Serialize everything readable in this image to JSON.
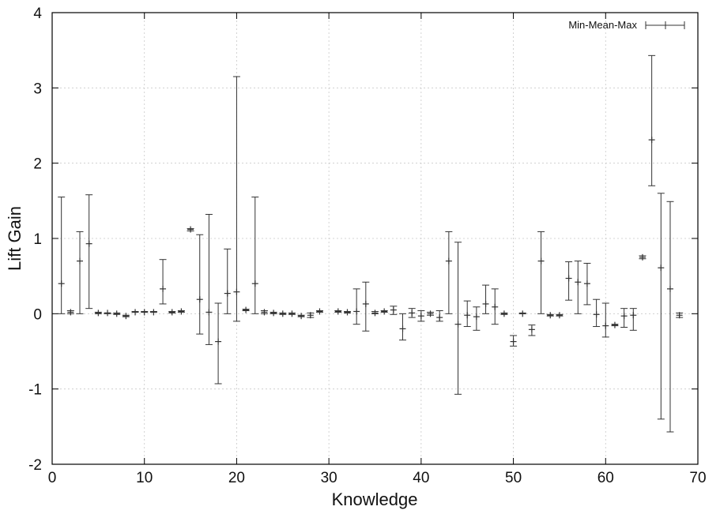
{
  "chart_data": {
    "type": "scatter",
    "style": "errorbars",
    "title": "",
    "xlabel": "Knowledge",
    "ylabel": "Lift Gain",
    "xlim": [
      0,
      70
    ],
    "ylim": [
      -2,
      4
    ],
    "xticks": [
      "0",
      "10",
      "20",
      "30",
      "40",
      "50",
      "60",
      "70"
    ],
    "yticks": [
      "-2",
      "-1",
      "0",
      "1",
      "2",
      "3",
      "4"
    ],
    "grid": true,
    "legend_position": "top-right",
    "series": [
      {
        "name": "Min-Mean-Max",
        "color": "#333333",
        "points": [
          {
            "x": 1,
            "mean": 0.4,
            "min": 0.0,
            "max": 1.55
          },
          {
            "x": 2,
            "mean": 0.02,
            "min": 0.0,
            "max": 0.04
          },
          {
            "x": 3,
            "mean": 0.7,
            "min": 0.0,
            "max": 1.09
          },
          {
            "x": 4,
            "mean": 0.93,
            "min": 0.07,
            "max": 1.58
          },
          {
            "x": 5,
            "mean": 0.01,
            "min": 0.0,
            "max": 0.02
          },
          {
            "x": 6,
            "mean": 0.01,
            "min": 0.0,
            "max": 0.01
          },
          {
            "x": 7,
            "mean": 0.0,
            "min": -0.01,
            "max": 0.01
          },
          {
            "x": 8,
            "mean": -0.03,
            "min": -0.04,
            "max": -0.02
          },
          {
            "x": 9,
            "mean": 0.02,
            "min": 0.02,
            "max": 0.03
          },
          {
            "x": 10,
            "mean": 0.02,
            "min": 0.02,
            "max": 0.03
          },
          {
            "x": 11,
            "mean": 0.02,
            "min": 0.02,
            "max": 0.03
          },
          {
            "x": 12,
            "mean": 0.33,
            "min": 0.13,
            "max": 0.72
          },
          {
            "x": 13,
            "mean": 0.02,
            "min": 0.01,
            "max": 0.03
          },
          {
            "x": 14,
            "mean": 0.03,
            "min": 0.02,
            "max": 0.04
          },
          {
            "x": 15,
            "mean": 1.12,
            "min": 1.1,
            "max": 1.13
          },
          {
            "x": 16,
            "mean": 0.19,
            "min": -0.27,
            "max": 1.05
          },
          {
            "x": 17,
            "mean": 0.02,
            "min": -0.41,
            "max": 1.32
          },
          {
            "x": 18,
            "mean": -0.37,
            "min": -0.93,
            "max": 0.14
          },
          {
            "x": 19,
            "mean": 0.27,
            "min": 0.0,
            "max": 0.86
          },
          {
            "x": 20,
            "mean": 0.29,
            "min": -0.1,
            "max": 3.15
          },
          {
            "x": 21,
            "mean": 0.05,
            "min": 0.04,
            "max": 0.06
          },
          {
            "x": 22,
            "mean": 0.4,
            "min": 0.0,
            "max": 1.55
          },
          {
            "x": 23,
            "mean": 0.02,
            "min": 0.0,
            "max": 0.04
          },
          {
            "x": 24,
            "mean": 0.01,
            "min": 0.0,
            "max": 0.02
          },
          {
            "x": 25,
            "mean": 0.0,
            "min": -0.01,
            "max": 0.01
          },
          {
            "x": 26,
            "mean": 0.0,
            "min": -0.01,
            "max": 0.01
          },
          {
            "x": 27,
            "mean": -0.03,
            "min": -0.04,
            "max": -0.02
          },
          {
            "x": 28,
            "mean": -0.02,
            "min": -0.05,
            "max": 0.01
          },
          {
            "x": 29,
            "mean": 0.03,
            "min": 0.02,
            "max": 0.04
          },
          {
            "x": 31,
            "mean": 0.03,
            "min": 0.02,
            "max": 0.04
          },
          {
            "x": 32,
            "mean": 0.02,
            "min": 0.01,
            "max": 0.03
          },
          {
            "x": 33,
            "mean": 0.03,
            "min": -0.14,
            "max": 0.33
          },
          {
            "x": 34,
            "mean": 0.13,
            "min": -0.23,
            "max": 0.42
          },
          {
            "x": 35,
            "mean": 0.01,
            "min": 0.0,
            "max": 0.03
          },
          {
            "x": 36,
            "mean": 0.03,
            "min": 0.02,
            "max": 0.04
          },
          {
            "x": 37,
            "mean": 0.05,
            "min": -0.01,
            "max": 0.1
          },
          {
            "x": 38,
            "mean": -0.2,
            "min": -0.35,
            "max": 0.0
          },
          {
            "x": 39,
            "mean": 0.01,
            "min": -0.05,
            "max": 0.07
          },
          {
            "x": 40,
            "mean": -0.03,
            "min": -0.1,
            "max": 0.04
          },
          {
            "x": 41,
            "mean": 0.0,
            "min": -0.02,
            "max": 0.02
          },
          {
            "x": 42,
            "mean": -0.05,
            "min": -0.1,
            "max": 0.04
          },
          {
            "x": 43,
            "mean": 0.7,
            "min": 0.0,
            "max": 1.09
          },
          {
            "x": 44,
            "mean": -0.14,
            "min": -1.07,
            "max": 0.95
          },
          {
            "x": 45,
            "mean": -0.02,
            "min": -0.17,
            "max": 0.17
          },
          {
            "x": 46,
            "mean": -0.04,
            "min": -0.22,
            "max": 0.09
          },
          {
            "x": 47,
            "mean": 0.13,
            "min": 0.0,
            "max": 0.38
          },
          {
            "x": 48,
            "mean": 0.09,
            "min": -0.14,
            "max": 0.33
          },
          {
            "x": 49,
            "mean": 0.0,
            "min": -0.01,
            "max": 0.01
          },
          {
            "x": 50,
            "mean": -0.37,
            "min": -0.43,
            "max": -0.29
          },
          {
            "x": 51,
            "mean": 0.0,
            "min": 0.0,
            "max": 0.01
          },
          {
            "x": 52,
            "mean": -0.21,
            "min": -0.29,
            "max": -0.15
          },
          {
            "x": 53,
            "mean": 0.7,
            "min": 0.0,
            "max": 1.09
          },
          {
            "x": 54,
            "mean": -0.02,
            "min": -0.03,
            "max": -0.01
          },
          {
            "x": 55,
            "mean": -0.02,
            "min": -0.03,
            "max": -0.01
          },
          {
            "x": 56,
            "mean": 0.47,
            "min": 0.18,
            "max": 0.69
          },
          {
            "x": 57,
            "mean": 0.42,
            "min": 0.0,
            "max": 0.7
          },
          {
            "x": 58,
            "mean": 0.4,
            "min": 0.12,
            "max": 0.67
          },
          {
            "x": 59,
            "mean": -0.01,
            "min": -0.17,
            "max": 0.19
          },
          {
            "x": 60,
            "mean": -0.16,
            "min": -0.31,
            "max": 0.14
          },
          {
            "x": 61,
            "mean": -0.15,
            "min": -0.16,
            "max": -0.14
          },
          {
            "x": 62,
            "mean": -0.03,
            "min": -0.18,
            "max": 0.07
          },
          {
            "x": 63,
            "mean": -0.02,
            "min": -0.22,
            "max": 0.07
          },
          {
            "x": 64,
            "mean": 0.75,
            "min": 0.73,
            "max": 0.77
          },
          {
            "x": 65,
            "mean": 2.31,
            "min": 1.7,
            "max": 3.43
          },
          {
            "x": 66,
            "mean": 0.61,
            "min": -1.4,
            "max": 1.6
          },
          {
            "x": 67,
            "mean": 0.33,
            "min": -1.57,
            "max": 1.49
          },
          {
            "x": 68,
            "mean": -0.02,
            "min": -0.05,
            "max": 0.01
          }
        ]
      }
    ]
  }
}
